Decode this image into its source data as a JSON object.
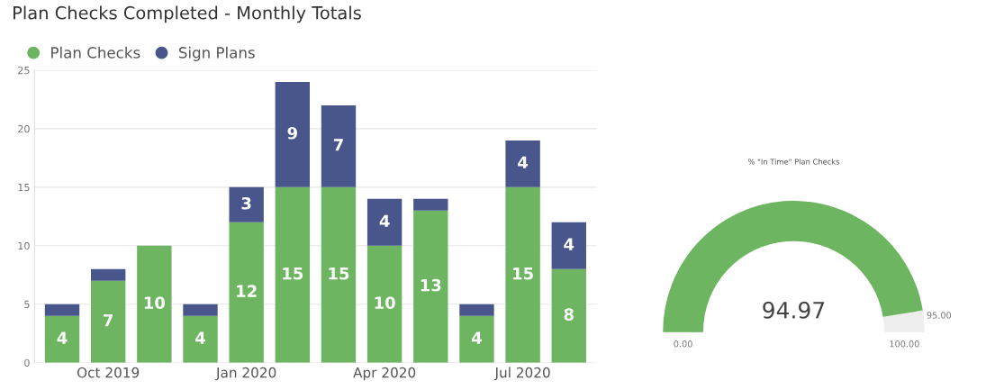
{
  "chart_data": [
    {
      "type": "bar",
      "title": "Plan Checks Completed - Monthly Totals",
      "stacked": true,
      "legend": "top left",
      "grid": "y",
      "categories": [
        null,
        "Oct 2019",
        null,
        null,
        "Jan 2020",
        null,
        null,
        "Apr 2020",
        null,
        null,
        "Jul 2020",
        null
      ],
      "ylim": [
        0,
        25
      ],
      "yticks": [
        0,
        5,
        10,
        15,
        20,
        25
      ],
      "series": [
        {
          "name": "Plan Checks",
          "color": "#6db560",
          "values": [
            4,
            7,
            10,
            4,
            12,
            15,
            15,
            10,
            13,
            4,
            15,
            8
          ],
          "value_labels": [
            "4",
            "7",
            "10",
            "4",
            "12",
            "15",
            "15",
            "10",
            "13",
            "4",
            "15",
            "8"
          ]
        },
        {
          "name": "Sign Plans",
          "color": "#48568c",
          "values": [
            1,
            1,
            0,
            1,
            3,
            9,
            7,
            4,
            1,
            1,
            4,
            4
          ],
          "value_labels": [
            null,
            null,
            null,
            null,
            "3",
            "9",
            "7",
            "4",
            null,
            null,
            "4",
            "4"
          ]
        }
      ]
    },
    {
      "type": "donut",
      "title": "% \"In Time\" Plan Checks",
      "categories": [
        null,
        null
      ],
      "values": [
        94.97,
        5.03
      ],
      "colors": [
        "#6db560",
        "#eeeeee"
      ],
      "annotations": [
        "94.97",
        "0.00",
        "100.00",
        "95.00"
      ]
    }
  ]
}
